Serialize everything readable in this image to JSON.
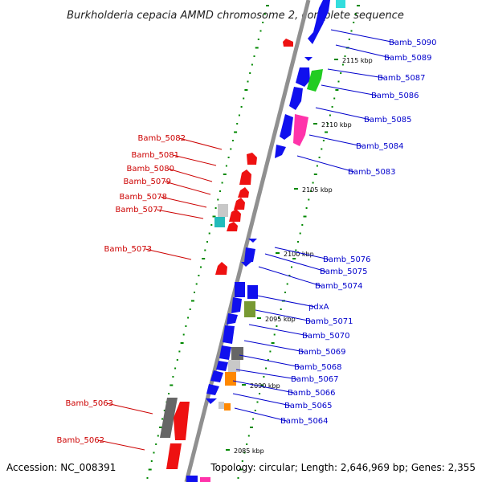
{
  "title": "Burkholderia cepacia AMMD chromosome 2, complete sequence",
  "footer": {
    "accession": "Accession: NC_008391",
    "summary": "Topology: circular; Length: 2,646,969 bp; Genes: 2,355"
  },
  "colors": {
    "backbone": "#909090",
    "right_label": "#0000cc",
    "left_label": "#cc0000",
    "tick": "#008800"
  },
  "kbp_markers": [
    "2115 kbp",
    "2110 kbp",
    "2105 kbp",
    "2100 kbp",
    "2095 kbp",
    "2090 kbp",
    "2085 kbp"
  ],
  "right_labels": [
    "Bamb_5090",
    "Bamb_5089",
    "Bamb_5087",
    "Bamb_5086",
    "Bamb_5085",
    "Bamb_5084",
    "Bamb_5083",
    "Bamb_5076",
    "Bamb_5075",
    "Bamb_5074",
    "pdxA",
    "Bamb_5071",
    "Bamb_5070",
    "Bamb_5069",
    "Bamb_5068",
    "Bamb_5067",
    "Bamb_5066",
    "Bamb_5065",
    "Bamb_5064"
  ],
  "left_labels": [
    "Bamb_5082",
    "Bamb_5081",
    "Bamb_5080",
    "Bamb_5079",
    "Bamb_5078",
    "Bamb_5077",
    "Bamb_5073",
    "Bamb_5063",
    "Bamb_5062"
  ]
}
